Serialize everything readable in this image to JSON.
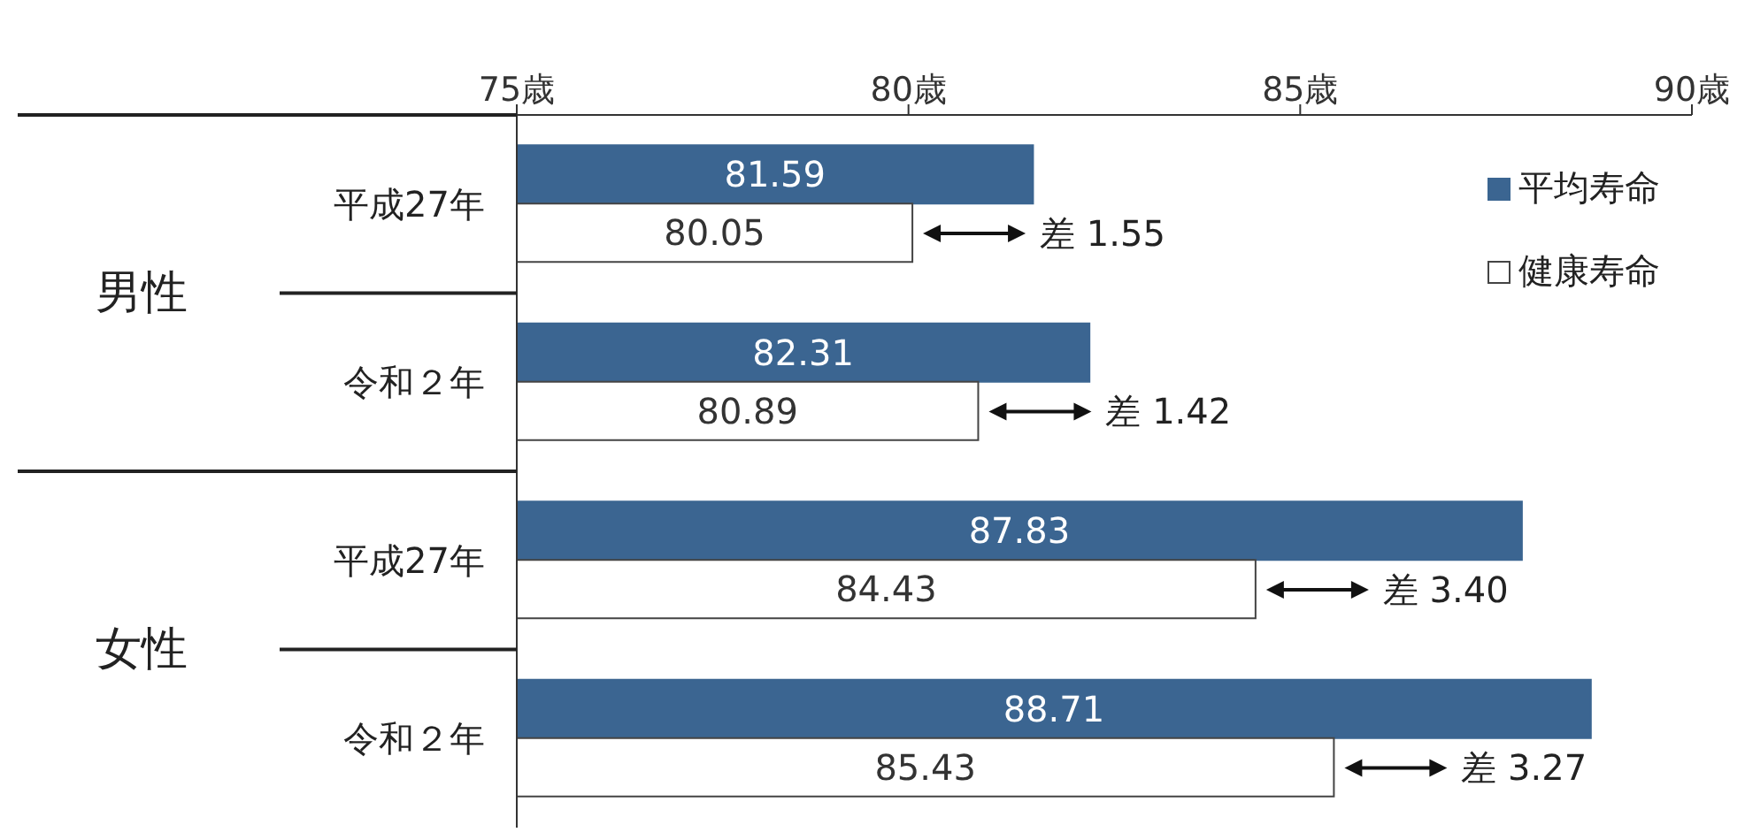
{
  "chart_data": {
    "type": "bar",
    "orientation": "horizontal",
    "categories": [
      "平成27年",
      "令和２年",
      "平成27年",
      "令和２年"
    ],
    "series": [
      {
        "name": "平均寿命",
        "color": "#3b6591",
        "values": [
          81.59,
          82.31,
          87.83,
          88.71
        ]
      },
      {
        "name": "健康寿命",
        "color": "#ffffff",
        "values": [
          80.05,
          80.89,
          84.43,
          85.43
        ]
      }
    ],
    "xlim": [
      75,
      90
    ],
    "xticks": [
      {
        "value": 75,
        "label": "75歳"
      },
      {
        "value": 80,
        "label": "80歳"
      },
      {
        "value": 85,
        "label": "85歳"
      },
      {
        "value": 90,
        "label": "90歳"
      }
    ],
    "data_labels": true,
    "legend": "top right",
    "annotations": [
      "差 1.55",
      "差 1.42",
      "差 3.40",
      "差 3.27",
      "男性",
      "女性"
    ]
  }
}
